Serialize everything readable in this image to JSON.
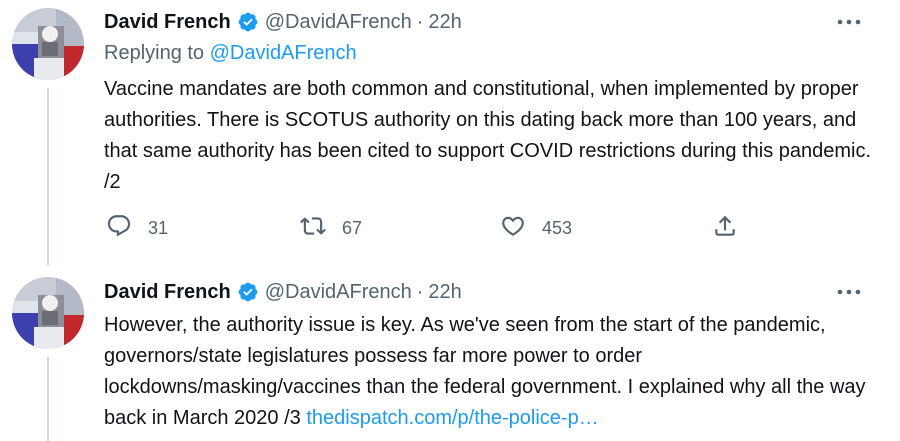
{
  "tweets": [
    {
      "author_name": "David French",
      "handle": "@DavidAFrench",
      "separator": "·",
      "time": "22h",
      "replying_prefix": "Replying to",
      "replying_handle": "@DavidAFrench",
      "text": "Vaccine mandates are both common and constitutional, when implemented by proper authorities. There is SCOTUS authority on this dating back more than 100 years, and that same authority has been cited to support COVID restrictions during this pandemic. /2",
      "replies": "31",
      "retweets": "67",
      "likes": "453"
    },
    {
      "author_name": "David French",
      "handle": "@DavidAFrench",
      "separator": "·",
      "time": "22h",
      "text": "However, the authority issue is key. As we've seen from the start of the pandemic, governors/state legislatures possess far more power to order lockdowns/masking/vaccines than the federal government. I explained why all the way back in March 2020 /3 ",
      "link": "thedispatch.com/p/the-police-p…"
    }
  ],
  "icons": {
    "verified": "verified-badge-icon",
    "more": "more-dots-icon",
    "reply": "reply-icon",
    "retweet": "retweet-icon",
    "like": "heart-icon",
    "share": "share-icon"
  },
  "colors": {
    "accent": "#1d9bf0",
    "text": "#0f1419",
    "muted": "#536471",
    "thread_line": "#cfd9de"
  }
}
